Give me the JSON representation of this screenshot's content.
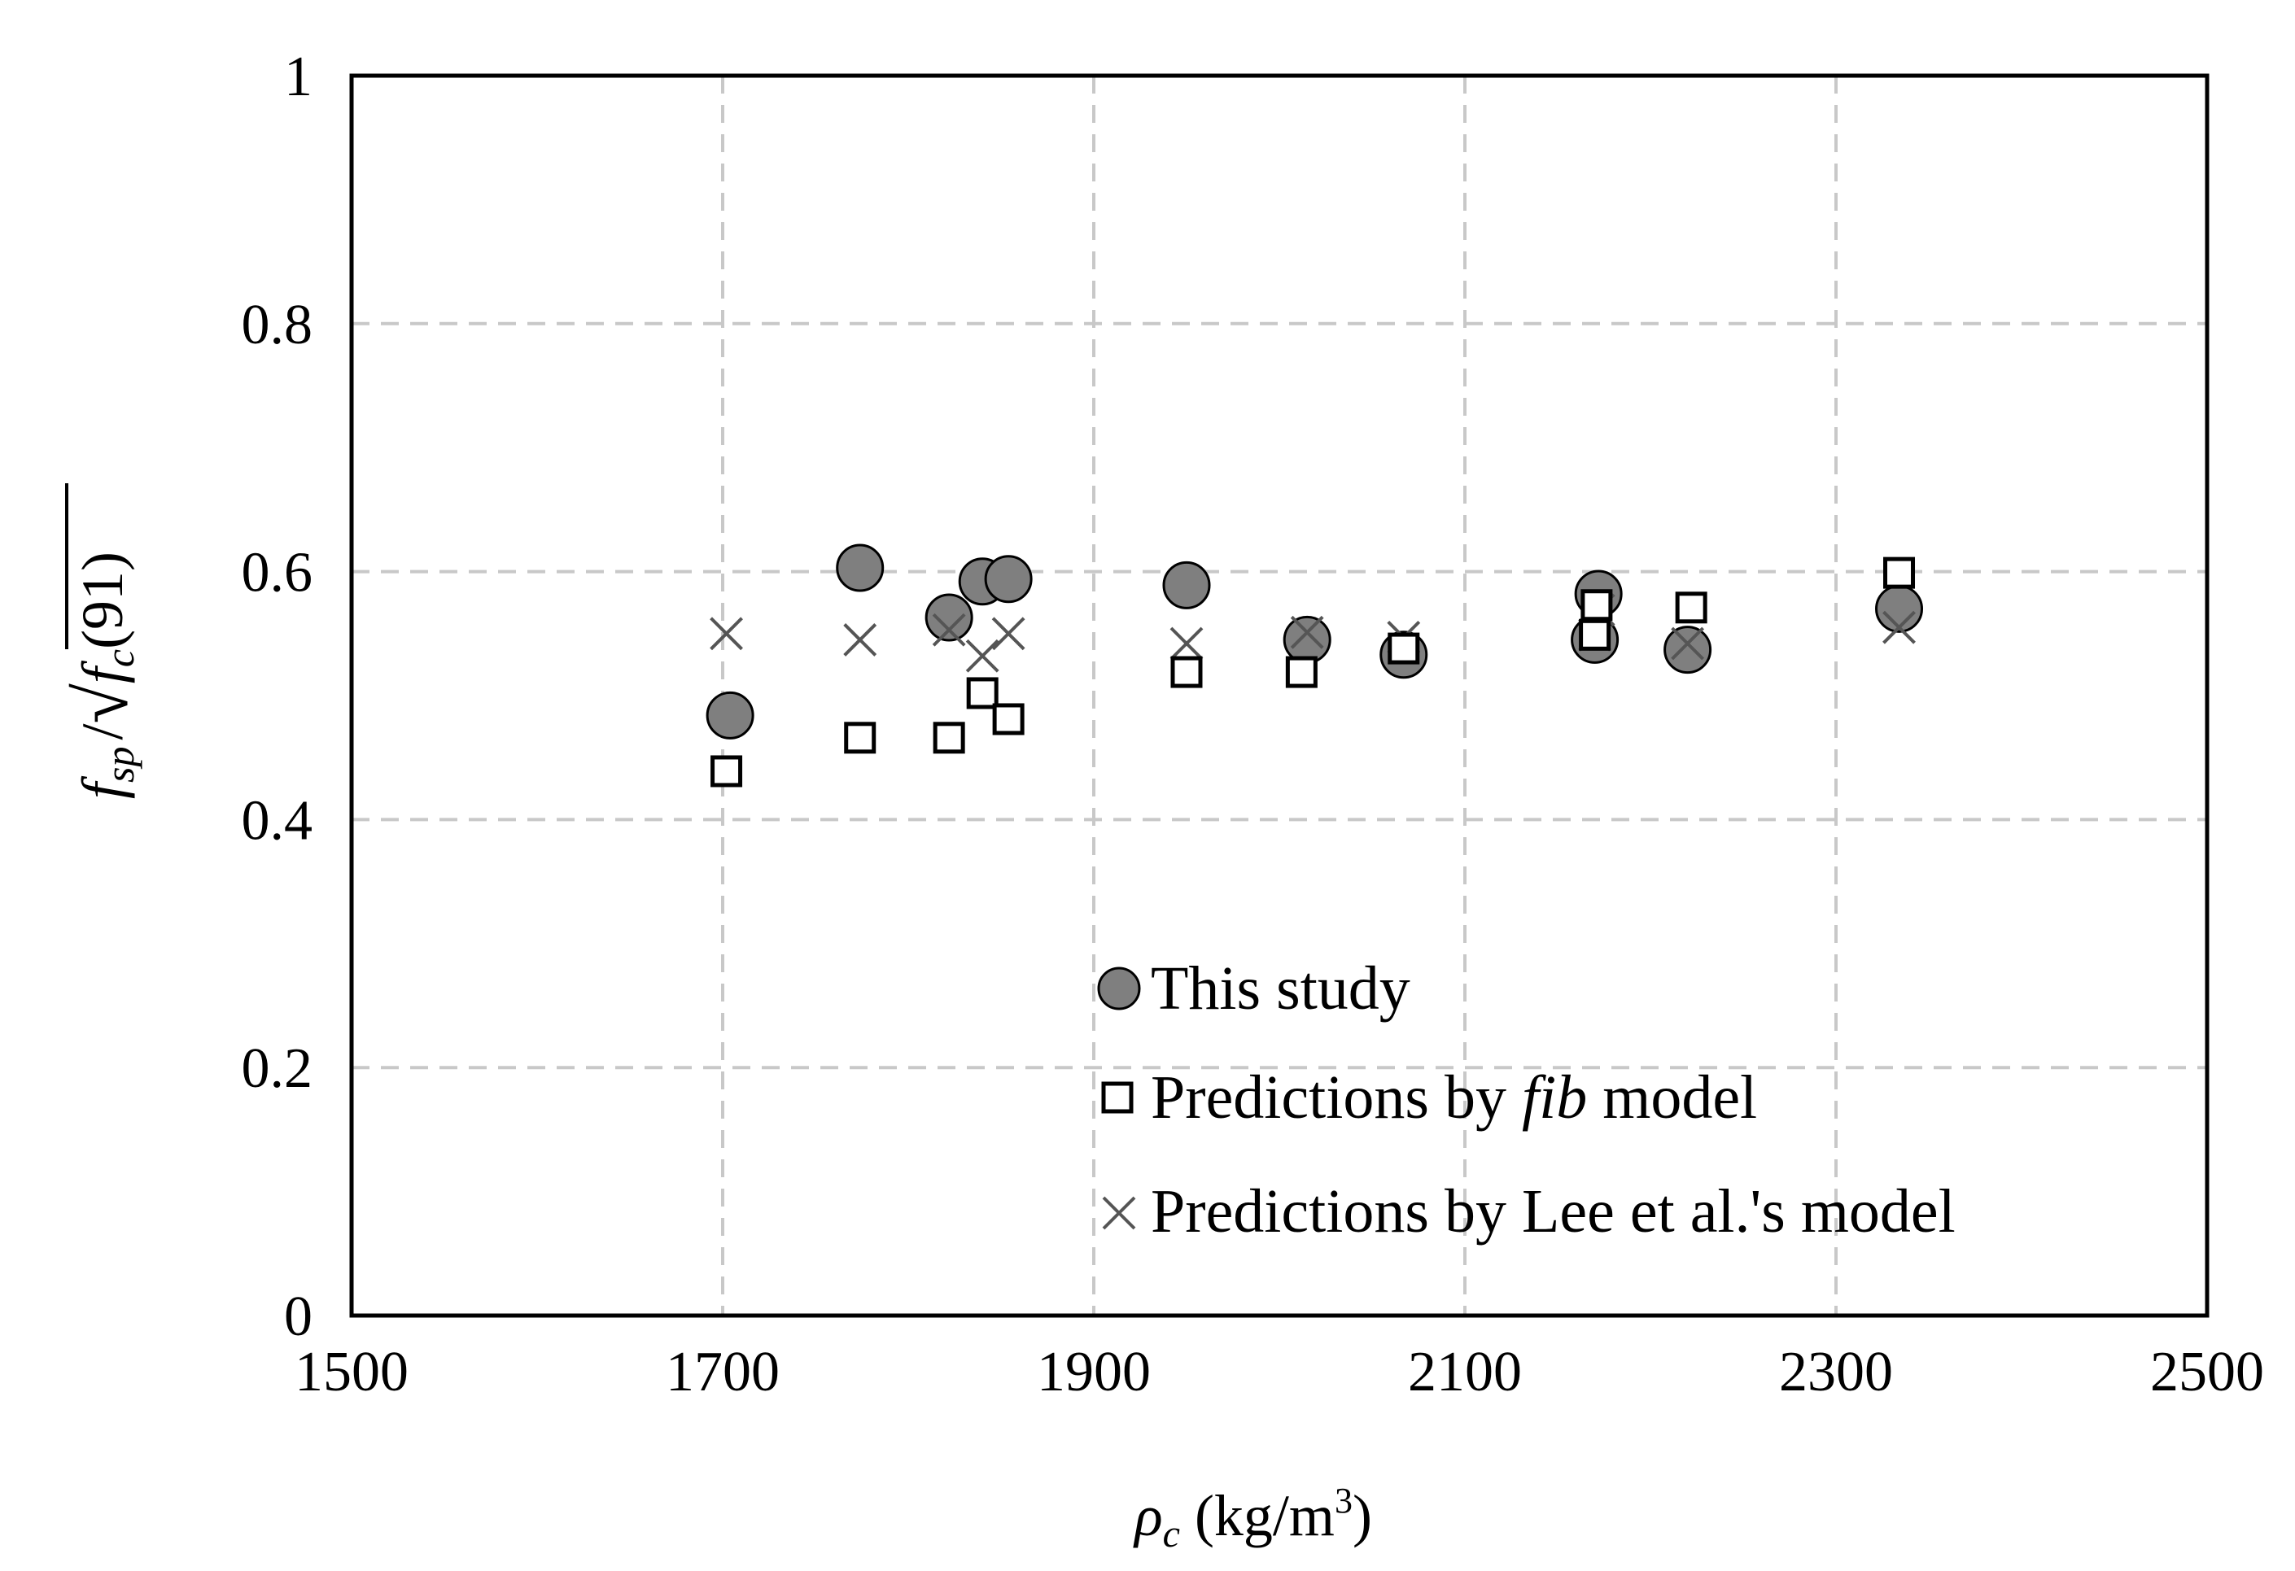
{
  "chart_data": {
    "type": "scatter",
    "title": "",
    "xlabel": {
      "symbol": "ρ",
      "subscript": "c",
      "units_pre": " (kg/m",
      "units_sup": "3",
      "units_post": ")"
    },
    "ylabel": {
      "f": "f",
      "sp": "sp",
      "slash": "/",
      "radical": "√",
      "fc": "f",
      "c": "c",
      "arg": "(91)"
    },
    "xlim": [
      1500,
      2500
    ],
    "ylim": [
      0,
      1
    ],
    "grid": true,
    "x_ticks": [
      "1500",
      "1700",
      "1900",
      "2100",
      "2300",
      "2500"
    ],
    "y_ticks": [
      "0",
      "0.2",
      "0.4",
      "0.6",
      "0.8",
      "1"
    ],
    "legend_position": "bottom-center",
    "series": [
      {
        "name": "This study",
        "marker": "circle",
        "color": "#7f7f7f",
        "points": [
          [
            1704,
            0.484
          ],
          [
            1774,
            0.603
          ],
          [
            1822,
            0.563
          ],
          [
            1840,
            0.592
          ],
          [
            1854,
            0.594
          ],
          [
            1950,
            0.589
          ],
          [
            2015,
            0.545
          ],
          [
            2067,
            0.533
          ],
          [
            2170,
            0.545
          ],
          [
            2172,
            0.582
          ],
          [
            2220,
            0.537
          ],
          [
            2334,
            0.57
          ]
        ]
      },
      {
        "name": "Predictions by fib model",
        "legend_parts": {
          "prefix": "Predictions by ",
          "italic": "fib",
          "suffix": " model"
        },
        "marker": "square",
        "color": "#000000",
        "points": [
          [
            1702,
            0.439
          ],
          [
            1774,
            0.466
          ],
          [
            1822,
            0.466
          ],
          [
            1840,
            0.502
          ],
          [
            1854,
            0.481
          ],
          [
            1950,
            0.519
          ],
          [
            2012,
            0.519
          ],
          [
            2067,
            0.538
          ],
          [
            2170,
            0.549
          ],
          [
            2171,
            0.573
          ],
          [
            2222,
            0.571
          ],
          [
            2334,
            0.599
          ]
        ]
      },
      {
        "name": "Predictions by Lee et al.'s model",
        "marker": "x",
        "color": "#555555",
        "points": [
          [
            1702,
            0.55
          ],
          [
            1774,
            0.545
          ],
          [
            1822,
            0.553
          ],
          [
            1840,
            0.532
          ],
          [
            1854,
            0.55
          ],
          [
            1950,
            0.542
          ],
          [
            2015,
            0.551
          ],
          [
            2067,
            0.547
          ],
          [
            2170,
            0.549
          ],
          [
            2172,
            0.569
          ],
          [
            2220,
            0.542
          ],
          [
            2334,
            0.555
          ]
        ]
      }
    ]
  }
}
